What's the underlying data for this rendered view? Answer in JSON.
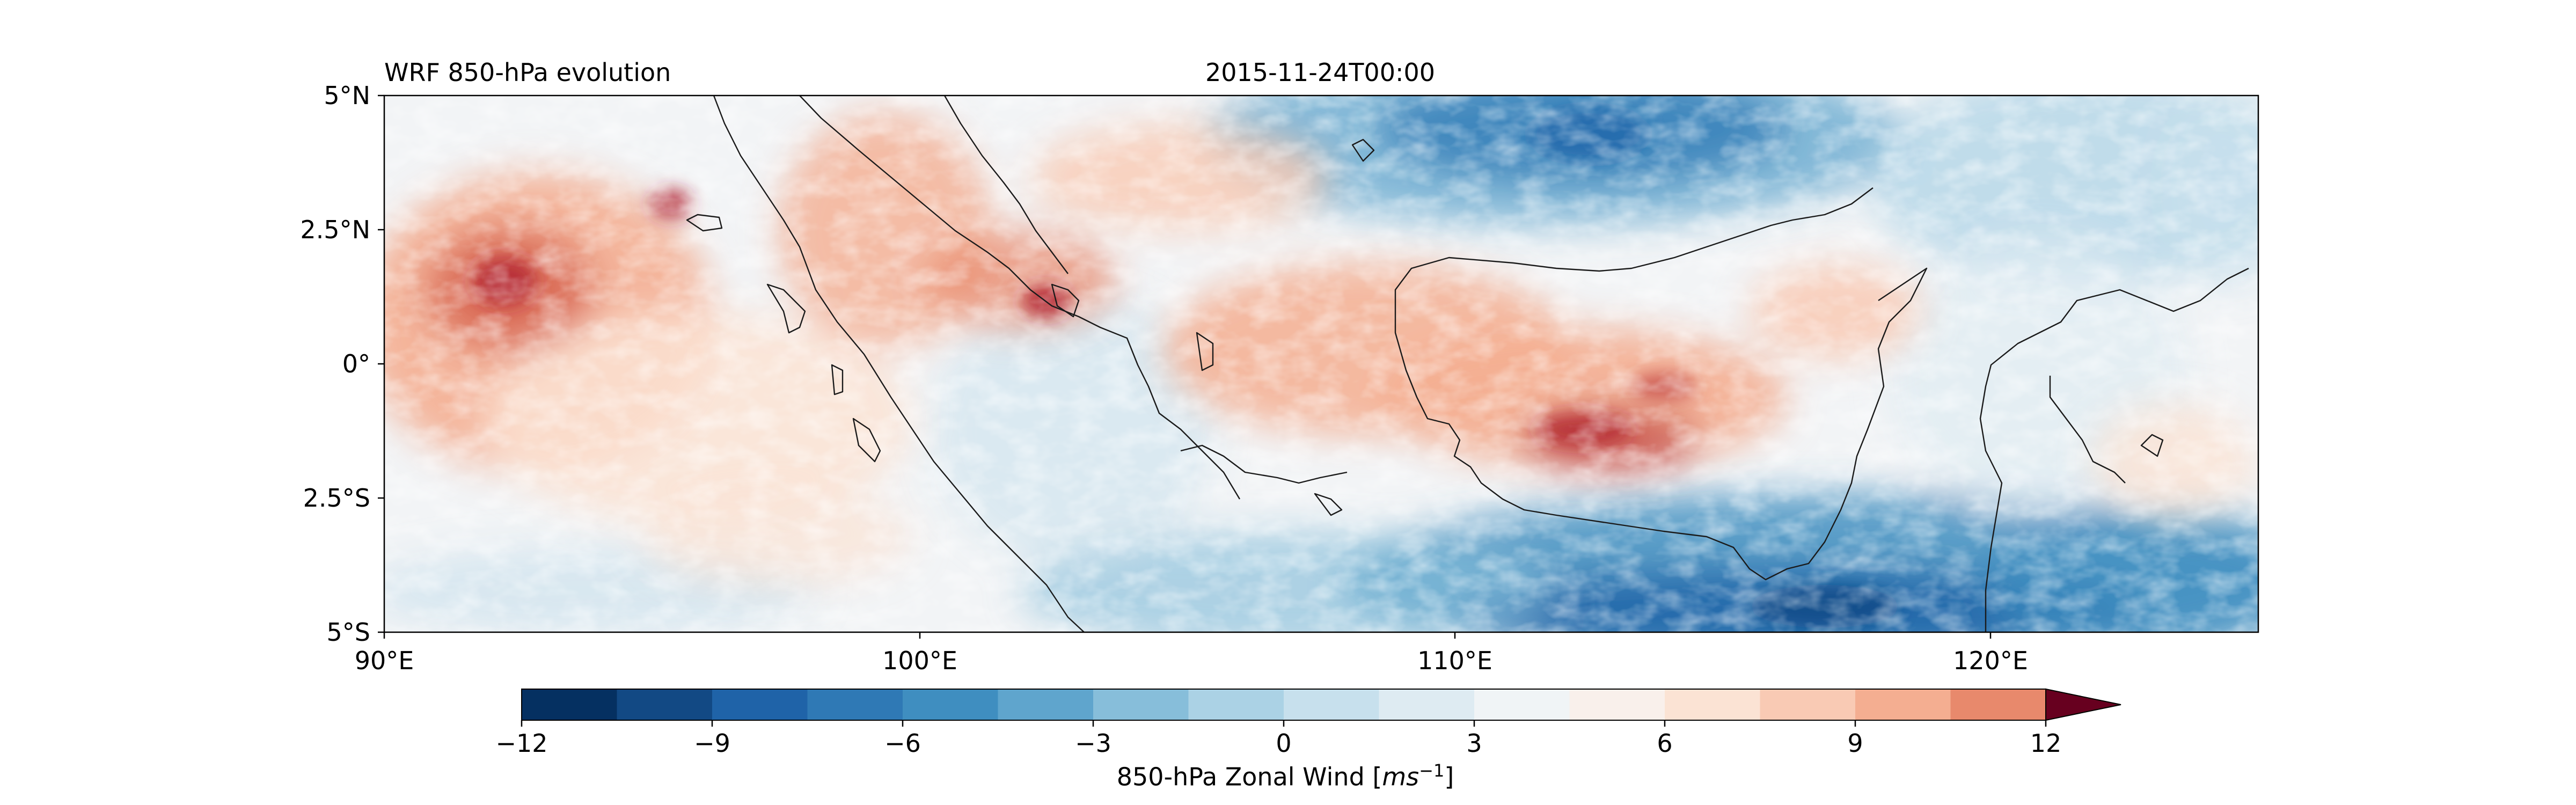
{
  "figure": {
    "title_left": "WRF 850-hPa evolution",
    "title_center": "2015-11-24T00:00"
  },
  "map": {
    "extent_lon": [
      90,
      125
    ],
    "extent_lat": [
      -5,
      5
    ],
    "y_ticks": [
      "5°N",
      "2.5°N",
      "0°",
      "2.5°S",
      "5°S"
    ],
    "x_ticks": [
      "90°E",
      "100°E",
      "110°E",
      "120°E"
    ],
    "colormap": "RdBu_r",
    "field_summary": "850-hPa zonal wind; westerlies (red) over Indian Ocean west of Sumatra, Malacca Strait and Borneo/Java Sea; easterlies (blue) over South China Sea north and Flores/Banda Sea south"
  },
  "colorbar": {
    "min": -12,
    "max": 12,
    "step": 1.5,
    "extend": "max",
    "ticks": [
      "−12",
      "−9",
      "−6",
      "−3",
      "0",
      "3",
      "6",
      "9",
      "12"
    ],
    "label_prefix": "850-hPa Zonal Wind [",
    "label_unit": "ms",
    "label_exp": "−1",
    "label_suffix": "]",
    "colors": [
      "#053061",
      "#124984",
      "#1f63a8",
      "#2f79b5",
      "#3f8ec0",
      "#5fa5cd",
      "#87beda",
      "#abd2e5",
      "#c7e0ed",
      "#deebf2",
      "#f0f4f6",
      "#f9f0eb",
      "#fbe3d4",
      "#f9cab4",
      "#f4ae91",
      "#e8896c",
      "#d96752",
      "#c54a43",
      "#b0202f",
      "#8e0d25",
      "#67001f"
    ]
  }
}
